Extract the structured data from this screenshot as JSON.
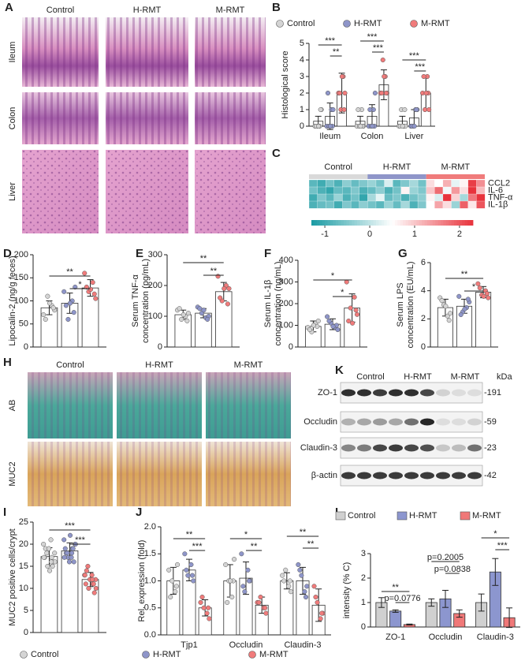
{
  "panel_labels": [
    "A",
    "B",
    "C",
    "D",
    "E",
    "F",
    "G",
    "H",
    "I",
    "J",
    "K",
    "L"
  ],
  "histology": {
    "columns": [
      "Control",
      "H-RMT",
      "M-RMT"
    ],
    "rows": [
      "Ileum",
      "Colon",
      "Liver"
    ]
  },
  "staining": {
    "columns": [
      "Control",
      "H-RMT",
      "M-RMT"
    ],
    "rows": [
      "AB",
      "MUC2"
    ]
  },
  "western_blot": {
    "groups": [
      "Control",
      "H-RMT",
      "M-RMT"
    ],
    "unit": "kDa",
    "bands": [
      {
        "protein": "ZO-1",
        "kda": "-191"
      },
      {
        "protein": "Occludin",
        "kda": "-59"
      },
      {
        "protein": "Claudin-3",
        "kda": "-23"
      },
      {
        "protein": "β-actin",
        "kda": "-42"
      }
    ]
  },
  "chart_data": [
    {
      "type": "bar",
      "ylabel": "Histological score",
      "categories": [
        "Ileum",
        "Colon",
        "Liver"
      ],
      "ylim": [
        0,
        5
      ],
      "yticks": [
        0,
        1,
        2,
        3,
        4,
        5
      ],
      "filled": false,
      "series": [
        {
          "name": "Control",
          "color": "#d4d4d4",
          "values": [
            0.3,
            0.3,
            0.3
          ],
          "errors": [
            0.3,
            0.3,
            0.3
          ],
          "points": [
            [
              0,
              0,
              0,
              1,
              0,
              1,
              0
            ],
            [
              0,
              1,
              0,
              0,
              1,
              0,
              0
            ],
            [
              0,
              0,
              1,
              0,
              0,
              1,
              0
            ]
          ]
        },
        {
          "name": "H-RMT",
          "color": "#8e95c9",
          "values": [
            0.6,
            0.6,
            0.5
          ],
          "errors": [
            0.8,
            0.7,
            0.5
          ],
          "points": [
            [
              0,
              1,
              0,
              1,
              2,
              0,
              0
            ],
            [
              0,
              1,
              0,
              2,
              1,
              0,
              0
            ],
            [
              0,
              1,
              0,
              1,
              0,
              1,
              0
            ]
          ]
        },
        {
          "name": "M-RMT",
          "color": "#f07b7b",
          "values": [
            2.0,
            2.5,
            2.0
          ],
          "errors": [
            1.2,
            0.9,
            1.0
          ],
          "points": [
            [
              2,
              3,
              1,
              2,
              2,
              1,
              3
            ],
            [
              2,
              3,
              4,
              2,
              2,
              2,
              3
            ],
            [
              2,
              3,
              1,
              1,
              3,
              2,
              2
            ]
          ]
        }
      ],
      "annotations": [
        "***",
        "**",
        "***",
        "***",
        "***",
        "***"
      ]
    },
    {
      "type": "heatmap",
      "rows": [
        "CCL2",
        "IL-6",
        "TNF-α",
        "IL-1β"
      ],
      "column_groups": [
        {
          "name": "Control",
          "color": "#d9d9d9"
        },
        {
          "name": "H-RMT",
          "color": "#8e95c9"
        },
        {
          "name": "M-RMT",
          "color": "#f07b7b"
        }
      ],
      "values": [
        [
          -0.8,
          -1.0,
          -0.6,
          -0.9,
          -0.4,
          -0.7,
          -0.5,
          -0.3,
          -0.6,
          0.2,
          -0.8,
          -0.5,
          -0.2,
          -0.6,
          0.8,
          0.5,
          1.2,
          0.3,
          0.6,
          2.2,
          1.5
        ],
        [
          -0.6,
          -0.9,
          -1.1,
          -0.7,
          -0.8,
          -0.5,
          -0.9,
          -0.7,
          -0.4,
          -0.9,
          -0.6,
          0.6,
          -0.3,
          -0.5,
          1.0,
          1.8,
          0.4,
          1.4,
          0.8,
          2.4,
          1.1
        ],
        [
          -1.0,
          -0.5,
          -0.8,
          -0.3,
          -0.9,
          -0.6,
          -1.1,
          -0.2,
          0.3,
          -0.7,
          -0.5,
          -0.9,
          -0.6,
          -0.4,
          0.6,
          0.2,
          2.3,
          0.9,
          -0.2,
          1.7,
          2.5
        ],
        [
          -0.9,
          -0.7,
          -0.6,
          -1.0,
          -0.5,
          -0.8,
          -0.4,
          -0.6,
          -0.8,
          -0.3,
          -0.7,
          -0.2,
          -0.9,
          -0.5,
          0.5,
          1.3,
          0.8,
          -0.3,
          1.9,
          0.7,
          2.0
        ]
      ],
      "zlim": [
        -1.3,
        2.3
      ],
      "zticks": [
        -1,
        0,
        1,
        2
      ],
      "colors": [
        "#1a9ba3",
        "#ffffff",
        "#e8333c"
      ]
    },
    {
      "type": "bar",
      "ylabel": "Lipocalin-2 (ng/g feces)",
      "ylim": [
        0,
        200
      ],
      "yticks": [
        0,
        50,
        100,
        150,
        200
      ],
      "filled": false,
      "series": [
        {
          "color": "#d4d4d4",
          "values": [
            85
          ],
          "errors": [
            15
          ],
          "points": [
            [
              70,
              90,
              110,
              80,
              60,
              85,
              95
            ]
          ]
        },
        {
          "color": "#8e95c9",
          "values": [
            95
          ],
          "errors": [
            22
          ],
          "points": [
            [
              120,
              100,
              60,
              130,
              90,
              75,
              95
            ]
          ]
        },
        {
          "color": "#f07b7b",
          "values": [
            128
          ],
          "errors": [
            18
          ],
          "points": [
            [
              160,
              140,
              120,
              105,
              130,
              115,
              125
            ]
          ]
        }
      ],
      "annotations": [
        "**",
        "*"
      ]
    },
    {
      "type": "bar",
      "ylabel": [
        "Serum TNF-α",
        "concentration (pg/mL)"
      ],
      "ylim": [
        0,
        300
      ],
      "yticks": [
        0,
        100,
        200,
        300
      ],
      "filled": false,
      "series": [
        {
          "color": "#d4d4d4",
          "values": [
            105
          ],
          "errors": [
            15
          ],
          "points": [
            [
              120,
              100,
              90,
              110,
              125,
              85,
              105
            ]
          ]
        },
        {
          "color": "#8e95c9",
          "values": [
            110
          ],
          "errors": [
            15
          ],
          "points": [
            [
              130,
              95,
              110,
              100,
              125,
              90,
              120
            ]
          ]
        },
        {
          "color": "#f07b7b",
          "values": [
            180
          ],
          "errors": [
            30
          ],
          "points": [
            [
              230,
              200,
              150,
              190,
              160,
              140,
              190
            ]
          ]
        }
      ],
      "annotations": [
        "**",
        "**"
      ]
    },
    {
      "type": "bar",
      "ylabel": [
        "Serum IL-1β",
        "concentration (ng/mL)"
      ],
      "ylim": [
        0,
        400
      ],
      "yticks": [
        0,
        100,
        200,
        300,
        400
      ],
      "filled": false,
      "series": [
        {
          "color": "#d4d4d4",
          "values": [
            95
          ],
          "errors": [
            25
          ],
          "points": [
            [
              90,
              110,
              70,
              120,
              80,
              95,
              100
            ]
          ]
        },
        {
          "color": "#8e95c9",
          "values": [
            105
          ],
          "errors": [
            25
          ],
          "points": [
            [
              140,
              90,
              110,
              80,
              120,
              100,
              95
            ]
          ]
        },
        {
          "color": "#f07b7b",
          "values": [
            180
          ],
          "errors": [
            65
          ],
          "points": [
            [
              300,
              230,
              180,
              150,
              120,
              170,
              110
            ]
          ]
        }
      ],
      "annotations": [
        "*",
        "*"
      ]
    },
    {
      "type": "bar",
      "ylabel": [
        "Serum LPS",
        "concentration (EU/mL)"
      ],
      "ylim": [
        0,
        6
      ],
      "yticks": [
        0,
        2,
        4,
        6
      ],
      "filled": false,
      "series": [
        {
          "color": "#d4d4d4",
          "values": [
            2.8
          ],
          "errors": [
            0.6
          ],
          "points": [
            [
              3.5,
              2.2,
              3.0,
              2.4,
              3.3,
              1.9,
              2.9
            ]
          ]
        },
        {
          "color": "#8e95c9",
          "values": [
            2.9
          ],
          "errors": [
            0.5
          ],
          "points": [
            [
              3.6,
              2.8,
              2.5,
              3.2,
              2.3,
              3.4,
              2.7
            ]
          ]
        },
        {
          "color": "#f07b7b",
          "values": [
            3.9
          ],
          "errors": [
            0.4
          ],
          "points": [
            [
              4.5,
              4.0,
              3.7,
              3.5,
              4.2,
              3.8,
              3.6
            ]
          ]
        }
      ],
      "annotations": [
        "**",
        "*"
      ]
    },
    {
      "type": "bar",
      "ylabel": "MUC2 positive cells/crypt",
      "ylim": [
        0,
        25
      ],
      "yticks": [
        0,
        5,
        10,
        15,
        20,
        25
      ],
      "filled": false,
      "series": [
        {
          "color": "#d4d4d4",
          "values": [
            17.2
          ],
          "errors": [
            2
          ],
          "points": [
            [
              20,
              17,
              15,
              18,
              19,
              16,
              14,
              17,
              21,
              18,
              16,
              19,
              15,
              17,
              16
            ]
          ]
        },
        {
          "color": "#8e95c9",
          "values": [
            18.5
          ],
          "errors": [
            1.8
          ],
          "points": [
            [
              21,
              19,
              17,
              20,
              18,
              16,
              22,
              19,
              17,
              18,
              20,
              16,
              19,
              17,
              18
            ]
          ]
        },
        {
          "color": "#f07b7b",
          "values": [
            12
          ],
          "errors": [
            1.6
          ],
          "points": [
            [
              13,
              11,
              10,
              12,
              14,
              9,
              12,
              11,
              13,
              15,
              10,
              12,
              11,
              13,
              12
            ]
          ]
        }
      ],
      "annotations": [
        "***",
        "***"
      ]
    },
    {
      "type": "bar",
      "ylabel": "Rel. expression (fold)",
      "categories": [
        "Tjp1",
        "Occludin",
        "Claudin-3"
      ],
      "ylim": [
        0,
        2
      ],
      "yticks": [
        {
          "value": 0,
          "label": "0.0"
        },
        0.5,
        {
          "value": 1,
          "label": "1.0"
        },
        1.5,
        {
          "value": 2,
          "label": "2.0"
        }
      ],
      "filled": false,
      "series": [
        {
          "name": "Control",
          "color": "#d4d4d4",
          "values": [
            1.0,
            1.0,
            1.0
          ],
          "errors": [
            0.25,
            0.3,
            0.15
          ],
          "points": [
            [
              1.2,
              0.8,
              1.0,
              1.3,
              0.7,
              0.9
            ],
            [
              1.3,
              0.7,
              1.0,
              1.4,
              0.6,
              1.0,
              1.0
            ],
            [
              1.1,
              0.9,
              1.2,
              0.8,
              1.0,
              1.0
            ]
          ]
        },
        {
          "name": "H-RMT",
          "color": "#8e95c9",
          "values": [
            1.2,
            1.05,
            1.0
          ],
          "errors": [
            0.2,
            0.3,
            0.25
          ],
          "points": [
            [
              1.5,
              1.3,
              1.1,
              1.0,
              1.2,
              1.1
            ],
            [
              1.5,
              1.2,
              0.8,
              1.0,
              0.9,
              1.0
            ],
            [
              1.3,
              0.8,
              1.1,
              0.9,
              1.2,
              0.7
            ]
          ]
        },
        {
          "name": "M-RMT",
          "color": "#f07b7b",
          "values": [
            0.5,
            0.55,
            0.55
          ],
          "errors": [
            0.15,
            0.15,
            0.3
          ],
          "points": [
            [
              0.6,
              0.4,
              0.5,
              0.3,
              0.7,
              0.5
            ],
            [
              0.6,
              0.5,
              0.7,
              0.4,
              0.6,
              0.5
            ],
            [
              0.9,
              0.3,
              0.6,
              0.4,
              0.7,
              0.4
            ]
          ]
        }
      ],
      "annotations": [
        "**",
        "***",
        "*",
        "**",
        "**",
        "**"
      ]
    },
    {
      "type": "bar",
      "ylabel": "intensity (% C)",
      "categories": [
        "ZO-1",
        "Occludin",
        "Claudin-3"
      ],
      "ylim": [
        0,
        3
      ],
      "yticks": [
        0,
        1,
        2,
        3
      ],
      "filled": true,
      "series": [
        {
          "name": "Control",
          "color": "#d0d0d0",
          "values": [
            1,
            1,
            1
          ],
          "errors": [
            0.2,
            0.15,
            0.35
          ]
        },
        {
          "name": "H-RMT",
          "color": "#8c96cf",
          "values": [
            0.65,
            1.15,
            2.25
          ],
          "errors": [
            0.05,
            0.35,
            0.55
          ]
        },
        {
          "name": "M-RMT",
          "color": "#f07878",
          "values": [
            0.1,
            0.55,
            0.38
          ],
          "errors": [
            0.02,
            0.15,
            0.4
          ]
        }
      ],
      "annotations": [
        "**",
        "p=0.0776",
        "p=0.2005",
        "p=0.0838",
        "*",
        "***"
      ]
    }
  ]
}
